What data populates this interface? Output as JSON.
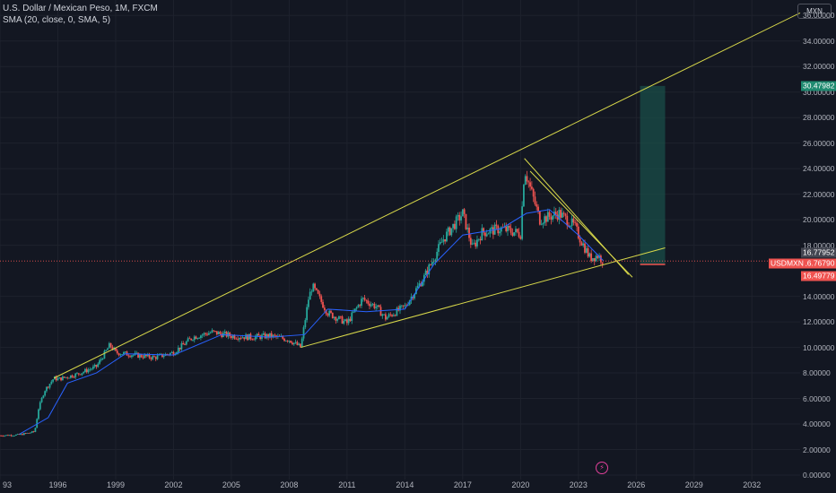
{
  "legend": {
    "symbol_line": "U.S. Dollar / Mexican Peso, 1M, FXCM",
    "indicator_line": "SMA (20, close, 0, SMA, 5)"
  },
  "currency_button": "MXN",
  "price_axis_ticks": [
    "36.00000",
    "34.00000",
    "32.00000",
    "30.00000",
    "28.00000",
    "26.00000",
    "24.00000",
    "22.00000",
    "20.00000",
    "18.00000",
    "14.00000",
    "12.00000",
    "10.00000",
    "8.00000",
    "6.00000",
    "4.00000",
    "2.00000",
    "0.00000"
  ],
  "time_axis_ticks": [
    "93",
    "1996",
    "1999",
    "2002",
    "2005",
    "2008",
    "2011",
    "2014",
    "2017",
    "2020",
    "2023",
    "2026",
    "2029",
    "2032"
  ],
  "price_tags": {
    "target": "30.47982",
    "sma": "16.77952",
    "last": "16.76790",
    "symbol": "USDMXN",
    "stop": "16.49779"
  },
  "colors": {
    "background": "#131722",
    "up": "#26a69a",
    "down": "#ef5350",
    "sma": "#2962ff",
    "trendline": "#d8d84a",
    "target_zone": "#1a4d48"
  },
  "logo_icon": "lightning-icon",
  "chart_data": {
    "type": "candlestick",
    "symbol": "USDMXN",
    "interval": "1M",
    "y_scale": "linear",
    "ylim": [
      0,
      37
    ],
    "xlim": [
      1993,
      2034.5
    ],
    "price_series": [
      {
        "x": 1993.0,
        "y": 3.1
      },
      {
        "x": 1994.0,
        "y": 3.15
      },
      {
        "x": 1994.8,
        "y": 3.4
      },
      {
        "x": 1995.0,
        "y": 5.2
      },
      {
        "x": 1995.3,
        "y": 6.6
      },
      {
        "x": 1995.8,
        "y": 7.6
      },
      {
        "x": 1996.0,
        "y": 7.5
      },
      {
        "x": 1997.0,
        "y": 7.9
      },
      {
        "x": 1998.0,
        "y": 8.5
      },
      {
        "x": 1998.7,
        "y": 10.2
      },
      {
        "x": 1999.0,
        "y": 9.6
      },
      {
        "x": 2000.0,
        "y": 9.4
      },
      {
        "x": 2001.0,
        "y": 9.2
      },
      {
        "x": 2002.0,
        "y": 9.6
      },
      {
        "x": 2003.0,
        "y": 10.8
      },
      {
        "x": 2004.0,
        "y": 11.2
      },
      {
        "x": 2005.0,
        "y": 10.9
      },
      {
        "x": 2006.0,
        "y": 10.8
      },
      {
        "x": 2007.0,
        "y": 10.9
      },
      {
        "x": 2008.0,
        "y": 10.6
      },
      {
        "x": 2008.6,
        "y": 10.0
      },
      {
        "x": 2009.0,
        "y": 13.8
      },
      {
        "x": 2009.2,
        "y": 14.8
      },
      {
        "x": 2010.0,
        "y": 12.7
      },
      {
        "x": 2011.0,
        "y": 11.9
      },
      {
        "x": 2011.8,
        "y": 13.8
      },
      {
        "x": 2012.5,
        "y": 13.2
      },
      {
        "x": 2013.0,
        "y": 12.3
      },
      {
        "x": 2014.0,
        "y": 13.2
      },
      {
        "x": 2015.0,
        "y": 15.5
      },
      {
        "x": 2016.0,
        "y": 18.5
      },
      {
        "x": 2017.0,
        "y": 20.5
      },
      {
        "x": 2017.5,
        "y": 17.8
      },
      {
        "x": 2018.0,
        "y": 19.0
      },
      {
        "x": 2019.0,
        "y": 19.3
      },
      {
        "x": 2020.0,
        "y": 18.9
      },
      {
        "x": 2020.2,
        "y": 24.0
      },
      {
        "x": 2020.5,
        "y": 22.5
      },
      {
        "x": 2021.0,
        "y": 20.0
      },
      {
        "x": 2022.0,
        "y": 20.5
      },
      {
        "x": 2022.8,
        "y": 19.5
      },
      {
        "x": 2023.0,
        "y": 18.8
      },
      {
        "x": 2023.6,
        "y": 17.0
      },
      {
        "x": 2024.0,
        "y": 17.2
      },
      {
        "x": 2024.3,
        "y": 16.77
      }
    ],
    "sma_series": [
      {
        "x": 1994.0,
        "y": 3.2
      },
      {
        "x": 1995.5,
        "y": 4.5
      },
      {
        "x": 1996.5,
        "y": 7.2
      },
      {
        "x": 1998.0,
        "y": 8.0
      },
      {
        "x": 1999.5,
        "y": 9.5
      },
      {
        "x": 2002.0,
        "y": 9.4
      },
      {
        "x": 2004.5,
        "y": 11.0
      },
      {
        "x": 2007.0,
        "y": 10.8
      },
      {
        "x": 2008.8,
        "y": 11.0
      },
      {
        "x": 2010.0,
        "y": 13.0
      },
      {
        "x": 2012.0,
        "y": 12.8
      },
      {
        "x": 2014.0,
        "y": 13.0
      },
      {
        "x": 2015.5,
        "y": 16.5
      },
      {
        "x": 2017.0,
        "y": 18.8
      },
      {
        "x": 2019.0,
        "y": 19.3
      },
      {
        "x": 2020.3,
        "y": 20.5
      },
      {
        "x": 2021.5,
        "y": 20.8
      },
      {
        "x": 2023.0,
        "y": 18.8
      },
      {
        "x": 2024.3,
        "y": 16.78
      }
    ],
    "trendlines": [
      {
        "from": {
          "x": 1995.8,
          "y": 7.6
        },
        "to": {
          "x": 2034.5,
          "y": 36.2
        }
      },
      {
        "from": {
          "x": 2008.6,
          "y": 10.0
        },
        "to": {
          "x": 2027.5,
          "y": 17.8
        }
      },
      {
        "from": {
          "x": 2020.2,
          "y": 24.8
        },
        "to": {
          "x": 2025.6,
          "y": 15.7
        }
      },
      {
        "from": {
          "x": 2020.5,
          "y": 23.8
        },
        "to": {
          "x": 2025.8,
          "y": 15.5
        }
      }
    ],
    "target_zone": {
      "x_start": 2026.2,
      "x_end": 2027.5,
      "y_low": 16.49779,
      "y_high": 30.47982
    },
    "last_price": 16.7679,
    "sma_value": 16.77952,
    "stop_level": 16.49779,
    "target_level": 30.47982
  }
}
